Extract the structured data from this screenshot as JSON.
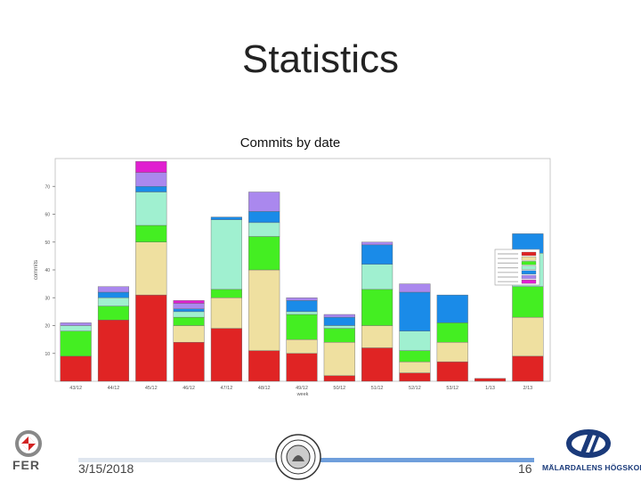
{
  "slide": {
    "title": "Statistics",
    "date": "3/15/2018",
    "page_number": "16",
    "logos": {
      "left_text": "FER",
      "right_text": "MÄLARDALENS HÖGSKOLA"
    }
  },
  "chart_data": {
    "type": "bar",
    "stacked": true,
    "title": "Commits by date",
    "xlabel": "week",
    "ylabel": "commits",
    "ylim": [
      0,
      80
    ],
    "yticks": [
      10,
      20,
      30,
      40,
      50,
      60,
      70
    ],
    "grid": false,
    "legend_position": "top-right",
    "categories": [
      "43/12",
      "44/12",
      "45/12",
      "46/12",
      "47/12",
      "48/12",
      "49/12",
      "50/12",
      "51/12",
      "52/12",
      "53/12",
      "1/13",
      "2/13"
    ],
    "series": [
      {
        "color": "#e02424",
        "values": [
          9,
          22,
          31,
          14,
          19,
          11,
          10,
          2,
          12,
          3,
          7,
          1,
          9
        ]
      },
      {
        "color": "#efe0a0",
        "values": [
          0,
          0,
          19,
          6,
          11,
          29,
          5,
          12,
          8,
          4,
          7,
          0,
          14
        ]
      },
      {
        "color": "#44ee22",
        "values": [
          9,
          5,
          6,
          3,
          3,
          12,
          9,
          5,
          13,
          4,
          7,
          0,
          11
        ]
      },
      {
        "color": "#a0f0d0",
        "values": [
          2,
          3,
          12,
          2,
          25,
          5,
          1,
          1,
          9,
          7,
          0,
          0,
          12
        ]
      },
      {
        "color": "#1a8be8",
        "values": [
          0,
          2,
          2,
          1,
          1,
          4,
          4,
          3,
          7,
          14,
          10,
          0,
          7
        ]
      },
      {
        "color": "#aa88ee",
        "values": [
          1,
          2,
          5,
          2,
          0,
          7,
          1,
          1,
          1,
          3,
          0,
          0,
          0
        ]
      },
      {
        "color": "#e020d0",
        "values": [
          0,
          0,
          4,
          1,
          0,
          0,
          0,
          0,
          0,
          0,
          0,
          0,
          0
        ]
      }
    ]
  }
}
